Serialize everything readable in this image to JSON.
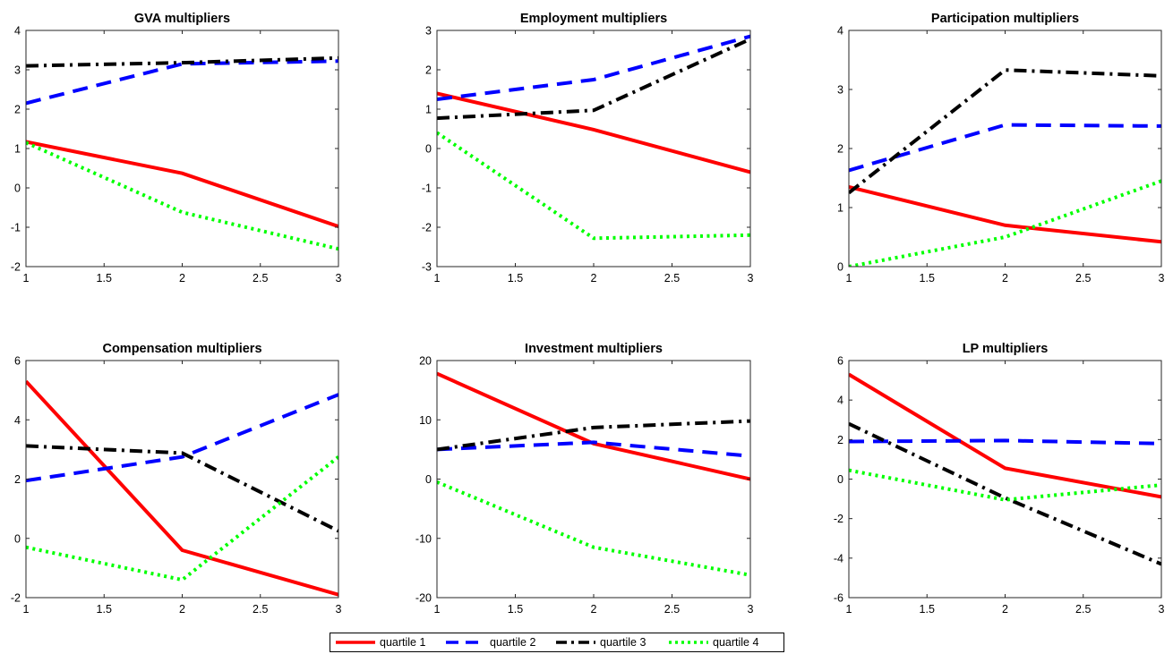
{
  "chart_data": [
    {
      "type": "line",
      "title": "GVA multipliers",
      "x": [
        1,
        2,
        3
      ],
      "xlim": [
        1,
        3
      ],
      "ylim": [
        -2,
        4
      ],
      "xticks": [
        "1",
        "1.5",
        "2",
        "2.5",
        "3"
      ],
      "yticks": [
        "-2",
        "-1",
        "0",
        "1",
        "2",
        "3",
        "4"
      ],
      "series": [
        {
          "name": "quartile 1",
          "values": [
            1.17,
            0.37,
            -0.98
          ]
        },
        {
          "name": "quartile 2",
          "values": [
            2.15,
            3.15,
            3.22
          ]
        },
        {
          "name": "quartile 3",
          "values": [
            3.1,
            3.18,
            3.3
          ]
        },
        {
          "name": "quartile 4",
          "values": [
            1.15,
            -0.62,
            -1.55
          ]
        }
      ]
    },
    {
      "type": "line",
      "title": "Employment multipliers",
      "x": [
        1,
        2,
        3
      ],
      "xlim": [
        1,
        3
      ],
      "ylim": [
        -3,
        3
      ],
      "xticks": [
        "1",
        "1.5",
        "2",
        "2.5",
        "3"
      ],
      "yticks": [
        "-3",
        "-2",
        "-1",
        "0",
        "1",
        "2",
        "3"
      ],
      "series": [
        {
          "name": "quartile 1",
          "values": [
            1.4,
            0.48,
            -0.6
          ]
        },
        {
          "name": "quartile 2",
          "values": [
            1.25,
            1.75,
            2.85
          ]
        },
        {
          "name": "quartile 3",
          "values": [
            0.77,
            0.97,
            2.78
          ]
        },
        {
          "name": "quartile 4",
          "values": [
            0.4,
            -2.28,
            -2.2
          ]
        }
      ]
    },
    {
      "type": "line",
      "title": "Participation multipliers",
      "x": [
        1,
        2,
        3
      ],
      "xlim": [
        1,
        3
      ],
      "ylim": [
        0,
        4
      ],
      "xticks": [
        "1",
        "1.5",
        "2",
        "2.5",
        "3"
      ],
      "yticks": [
        "0",
        "1",
        "2",
        "3",
        "4"
      ],
      "series": [
        {
          "name": "quartile 1",
          "values": [
            1.35,
            0.7,
            0.42
          ]
        },
        {
          "name": "quartile 2",
          "values": [
            1.63,
            2.4,
            2.38
          ]
        },
        {
          "name": "quartile 3",
          "values": [
            1.25,
            3.33,
            3.23
          ]
        },
        {
          "name": "quartile 4",
          "values": [
            0.0,
            0.5,
            1.45
          ]
        }
      ]
    },
    {
      "type": "line",
      "title": "Compensation multipliers",
      "x": [
        1,
        2,
        3
      ],
      "xlim": [
        1,
        3
      ],
      "ylim": [
        -2,
        6
      ],
      "xticks": [
        "1",
        "1.5",
        "2",
        "2.5",
        "3"
      ],
      "yticks": [
        "-2",
        "0",
        "2",
        "4",
        "6"
      ],
      "series": [
        {
          "name": "quartile 1",
          "values": [
            5.3,
            -0.4,
            -1.9
          ]
        },
        {
          "name": "quartile 2",
          "values": [
            1.95,
            2.75,
            4.85
          ]
        },
        {
          "name": "quartile 3",
          "values": [
            3.12,
            2.88,
            0.25
          ]
        },
        {
          "name": "quartile 4",
          "values": [
            -0.3,
            -1.4,
            2.75
          ]
        }
      ]
    },
    {
      "type": "line",
      "title": "Investment multipliers",
      "x": [
        1,
        2,
        3
      ],
      "xlim": [
        1,
        3
      ],
      "ylim": [
        -20,
        20
      ],
      "xticks": [
        "1",
        "1.5",
        "2",
        "2.5",
        "3"
      ],
      "yticks": [
        "-20",
        "-10",
        "0",
        "10",
        "20"
      ],
      "series": [
        {
          "name": "quartile 1",
          "values": [
            17.8,
            6.0,
            0.0
          ]
        },
        {
          "name": "quartile 2",
          "values": [
            5.0,
            6.2,
            3.9
          ]
        },
        {
          "name": "quartile 3",
          "values": [
            5.0,
            8.7,
            9.8
          ]
        },
        {
          "name": "quartile 4",
          "values": [
            -0.5,
            -11.5,
            -16.2
          ]
        }
      ]
    },
    {
      "type": "line",
      "title": "LP multipliers",
      "x": [
        1,
        2,
        3
      ],
      "xlim": [
        1,
        3
      ],
      "ylim": [
        -6,
        6
      ],
      "xticks": [
        "1",
        "1.5",
        "2",
        "2.5",
        "3"
      ],
      "yticks": [
        "-6",
        "-4",
        "-2",
        "0",
        "2",
        "4",
        "6"
      ],
      "series": [
        {
          "name": "quartile 1",
          "values": [
            5.3,
            0.55,
            -0.9
          ]
        },
        {
          "name": "quartile 2",
          "values": [
            1.9,
            1.95,
            1.8
          ]
        },
        {
          "name": "quartile 3",
          "values": [
            2.8,
            -0.95,
            -4.3
          ]
        },
        {
          "name": "quartile 4",
          "values": [
            0.45,
            -1.05,
            -0.3
          ]
        }
      ]
    }
  ],
  "legend": {
    "position": "bottom-center",
    "items": [
      {
        "label": "quartile 1",
        "color": "#ff0000",
        "style": "solid"
      },
      {
        "label": "quartile 2",
        "color": "#0000ff",
        "style": "dashed"
      },
      {
        "label": "quartile 3",
        "color": "#000000",
        "style": "dashdot"
      },
      {
        "label": "quartile 4",
        "color": "#00ff00",
        "style": "dotted"
      }
    ]
  }
}
